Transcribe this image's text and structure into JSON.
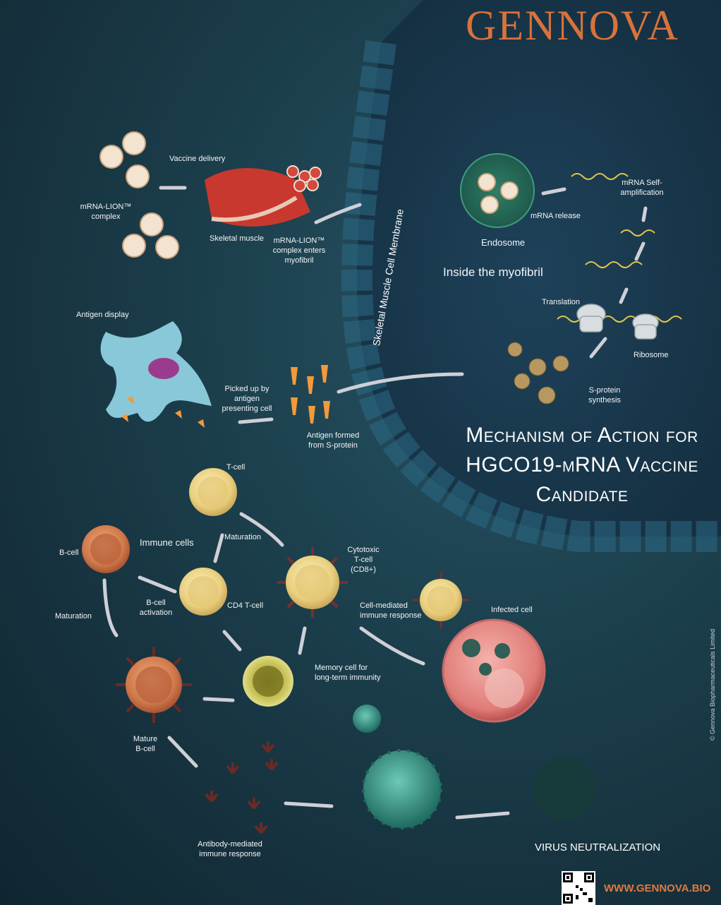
{
  "brand": {
    "logo_text": "GENNOVA",
    "website": "WWW.GENNOVA.BIO",
    "copyright": "© Gennova Biopharmaceuticals Limited"
  },
  "title": "Mechanism of Action for HGCO19-mRNA Vaccine Candidate",
  "labels": {
    "vaccine_delivery": "Vaccine delivery",
    "mrna_lion_complex": "mRNA-LION™ complex",
    "skeletal_muscle": "Skeletal muscle",
    "complex_enters": "mRNA-LION™ complex enters myofibril",
    "membrane": "Skeletal Muscle Cell Membrane",
    "endosome": "Endosome",
    "mrna_release": "mRNA release",
    "self_amplification": "mRNA Self-amplification",
    "inside_myofibril": "Inside the myofibril",
    "translation": "Translation",
    "ribosome": "Ribosome",
    "s_protein_synthesis": "S-protein synthesis",
    "antigen_display": "Antigen display",
    "picked_up": "Picked up by antigen presenting cell",
    "antigen_formed": "Antigen formed from S-protein",
    "t_cell": "T-cell",
    "immune_cells": "Immune cells",
    "b_cell": "B-cell",
    "maturation_t": "Maturation",
    "cytotoxic": "Cytotoxic T-cell (CD8+)",
    "cd4": "CD4 T-cell",
    "b_cell_activation": "B-cell activation",
    "maturation_b": "Maturation",
    "cell_mediated": "Cell-mediated immune response",
    "infected_cell": "Infected cell",
    "memory_cell": "Memory cell for long-term immunity",
    "mature_b_cell": "Mature B-cell",
    "antibody_mediated": "Antibody-mediated immune response",
    "virus_neutralization": "VIRUS NEUTRALIZATION"
  },
  "colors": {
    "brand_orange": "#d9733a",
    "t_cell_yellow": "#e9cf7e",
    "b_cell_orange": "#d07a4c",
    "virus_teal": "#2e8b7e",
    "infected_pink": "#e58a86"
  }
}
